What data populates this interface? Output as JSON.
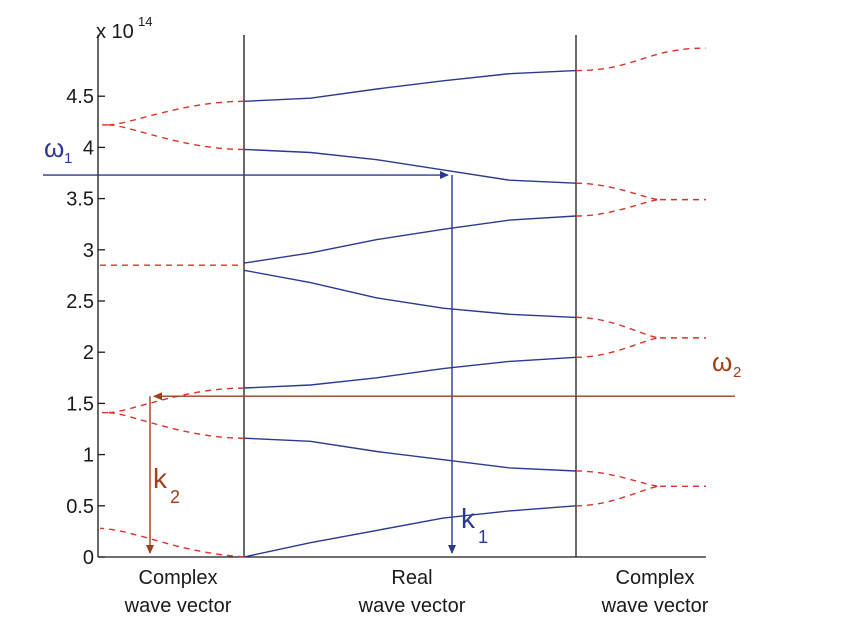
{
  "chart_data": {
    "type": "line",
    "title": "",
    "ylabel": "",
    "y_exponent": {
      "base": "x 10",
      "power": "14"
    },
    "ylim": [
      0,
      4.9
    ],
    "yticks": [
      0,
      0.5,
      1,
      1.5,
      2,
      2.5,
      3,
      3.5,
      4,
      4.5
    ],
    "ytick_labels": [
      "0",
      "0.5",
      "1",
      "1.5",
      "2",
      "2.5",
      "3",
      "3.5",
      "4",
      "4.5"
    ],
    "grid": false,
    "regions": [
      {
        "line1": "Complex",
        "line2": "wave vector"
      },
      {
        "line1": "Real",
        "line2": "wave vector"
      },
      {
        "line1": "Complex",
        "line2": "wave vector"
      }
    ],
    "colors": {
      "real_bands": "#2b3a8f",
      "complex_bands": "#d9342b",
      "omega1": "#2b3a8f",
      "omega2": "#a0401a",
      "axes": "#1a1a1a"
    },
    "real_bands": [
      {
        "y": [
          0.0,
          0.14,
          0.26,
          0.38,
          0.45,
          0.5
        ]
      },
      {
        "y": [
          1.16,
          1.13,
          1.03,
          0.95,
          0.87,
          0.84
        ]
      },
      {
        "y": [
          1.65,
          1.68,
          1.75,
          1.84,
          1.91,
          1.95
        ]
      },
      {
        "y": [
          2.8,
          2.68,
          2.53,
          2.43,
          2.37,
          2.34
        ]
      },
      {
        "y": [
          2.87,
          2.97,
          3.1,
          3.2,
          3.29,
          3.33
        ]
      },
      {
        "y": [
          3.98,
          3.95,
          3.88,
          3.78,
          3.68,
          3.65
        ]
      },
      {
        "y": [
          4.45,
          4.48,
          4.57,
          4.65,
          4.72,
          4.75
        ]
      }
    ],
    "complex_bands_left": [
      {
        "kind": "curve",
        "y_end": 0.0,
        "y_edge": 0.28
      },
      {
        "kind": "loop",
        "y_top": 1.65,
        "y_bottom": 1.16,
        "y_join": 1.41
      },
      {
        "kind": "line",
        "y": 2.85
      },
      {
        "kind": "loop",
        "y_top": 4.45,
        "y_bottom": 3.98,
        "y_join": 4.22
      }
    ],
    "complex_bands_right": [
      {
        "kind": "loop",
        "y_top": 0.84,
        "y_bottom": 0.5,
        "y_join": 0.69
      },
      {
        "kind": "loop",
        "y_top": 2.34,
        "y_bottom": 1.95,
        "y_join": 2.14
      },
      {
        "kind": "loop",
        "y_top": 3.65,
        "y_bottom": 3.33,
        "y_join": 3.49
      },
      {
        "kind": "line",
        "y_start": 4.75,
        "y_end": 4.97
      }
    ],
    "annotations": {
      "omega1": {
        "label": "ω",
        "sub": "1",
        "y": 3.73
      },
      "omega2": {
        "label": "ω",
        "sub": "2",
        "y": 1.57
      },
      "k1": {
        "label": "k",
        "sub": "1"
      },
      "k2": {
        "label": "k",
        "sub": "2"
      }
    }
  }
}
